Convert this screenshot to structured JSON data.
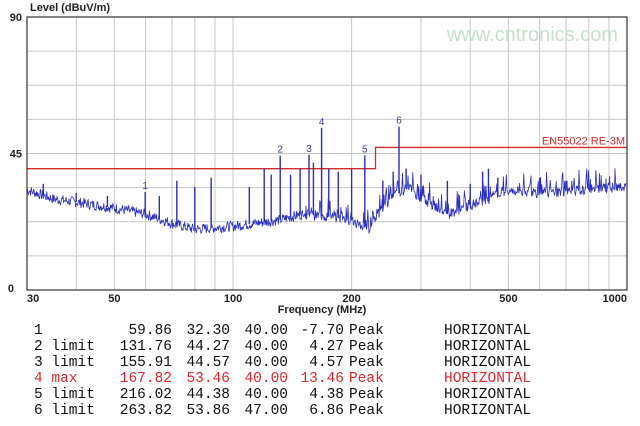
{
  "chart_data": {
    "type": "line",
    "ylabel": "Level (dBuV/m)",
    "xlabel": "Frequency (MHz)",
    "xscale": "log",
    "xlim": [
      30,
      1000
    ],
    "ylim": [
      0,
      90
    ],
    "grid": true,
    "yticks": [
      "0",
      "45",
      "90"
    ],
    "xticks": [
      30,
      50,
      100,
      200,
      500,
      1000
    ],
    "xtick_labels": [
      "30",
      "50",
      "100",
      "200",
      "500",
      "1000"
    ],
    "trace_color": "#2a2ec0",
    "limit_color": "#d42a2a",
    "limit": {
      "name": "EN55022 RE-3M",
      "segments": [
        {
          "x": [
            30,
            230
          ],
          "y": 40
        },
        {
          "x": [
            230,
            1000
          ],
          "y": 47
        }
      ]
    },
    "trace_baseline": [
      [
        30,
        33
      ],
      [
        35,
        30
      ],
      [
        40,
        29
      ],
      [
        50,
        27
      ],
      [
        60,
        25
      ],
      [
        70,
        22
      ],
      [
        80,
        20
      ],
      [
        100,
        21
      ],
      [
        130,
        23
      ],
      [
        150,
        25
      ],
      [
        180,
        24
      ],
      [
        200,
        23
      ],
      [
        220,
        20
      ],
      [
        250,
        30
      ],
      [
        280,
        34
      ],
      [
        300,
        30
      ],
      [
        350,
        25
      ],
      [
        400,
        28
      ],
      [
        450,
        30
      ],
      [
        500,
        33
      ],
      [
        600,
        32
      ],
      [
        800,
        33
      ],
      [
        1000,
        34
      ]
    ],
    "trace_spikes": [
      [
        33,
        35
      ],
      [
        40,
        32
      ],
      [
        48,
        31
      ],
      [
        59.86,
        32.3
      ],
      [
        65,
        31
      ],
      [
        72,
        36
      ],
      [
        80,
        34
      ],
      [
        88,
        37
      ],
      [
        110,
        34
      ],
      [
        120,
        40
      ],
      [
        125,
        38
      ],
      [
        131.76,
        44.27
      ],
      [
        140,
        38
      ],
      [
        148,
        40
      ],
      [
        155.91,
        44.57
      ],
      [
        160,
        42
      ],
      [
        167.82,
        53.46
      ],
      [
        175,
        40
      ],
      [
        185,
        39
      ],
      [
        200,
        40
      ],
      [
        216.02,
        44.38
      ],
      [
        240,
        36
      ],
      [
        255,
        39
      ],
      [
        263.82,
        53.86
      ],
      [
        275,
        40
      ],
      [
        300,
        38
      ],
      [
        350,
        36
      ],
      [
        400,
        35
      ],
      [
        430,
        39
      ],
      [
        445,
        40
      ],
      [
        470,
        37
      ],
      [
        600,
        37
      ],
      [
        700,
        36
      ],
      [
        800,
        35
      ]
    ],
    "markers": [
      {
        "label": "1",
        "x": 59.86,
        "y": 32.3
      },
      {
        "label": "2",
        "x": 131.76,
        "y": 44.27
      },
      {
        "label": "3",
        "x": 155.91,
        "y": 44.57
      },
      {
        "label": "4",
        "x": 167.82,
        "y": 53.46
      },
      {
        "label": "5",
        "x": 216.02,
        "y": 44.38
      },
      {
        "label": "6",
        "x": 263.82,
        "y": 53.86
      }
    ]
  },
  "table": {
    "rows": [
      {
        "id": "1",
        "freq": "59.86",
        "level": "32.30",
        "limit": "40.00",
        "margin": "-7.70",
        "det": "Peak",
        "pol": "HORIZONTAL",
        "highlight": false
      },
      {
        "id": "2 limit",
        "freq": "131.76",
        "level": "44.27",
        "limit": "40.00",
        "margin": "4.27",
        "det": "Peak",
        "pol": "HORIZONTAL",
        "highlight": false
      },
      {
        "id": "3 limit",
        "freq": "155.91",
        "level": "44.57",
        "limit": "40.00",
        "margin": "4.57",
        "det": "Peak",
        "pol": "HORIZONTAL",
        "highlight": false
      },
      {
        "id": "4 max",
        "freq": "167.82",
        "level": "53.46",
        "limit": "40.00",
        "margin": "13.46",
        "det": "Peak",
        "pol": "HORIZONTAL",
        "highlight": true
      },
      {
        "id": "5 limit",
        "freq": "216.02",
        "level": "44.38",
        "limit": "40.00",
        "margin": "4.38",
        "det": "Peak",
        "pol": "HORIZONTAL",
        "highlight": false
      },
      {
        "id": "6 limit",
        "freq": "263.82",
        "level": "53.86",
        "limit": "47.00",
        "margin": "6.86",
        "det": "Peak",
        "pol": "HORIZONTAL",
        "highlight": false
      }
    ]
  },
  "watermark": "www.cntronics.com"
}
